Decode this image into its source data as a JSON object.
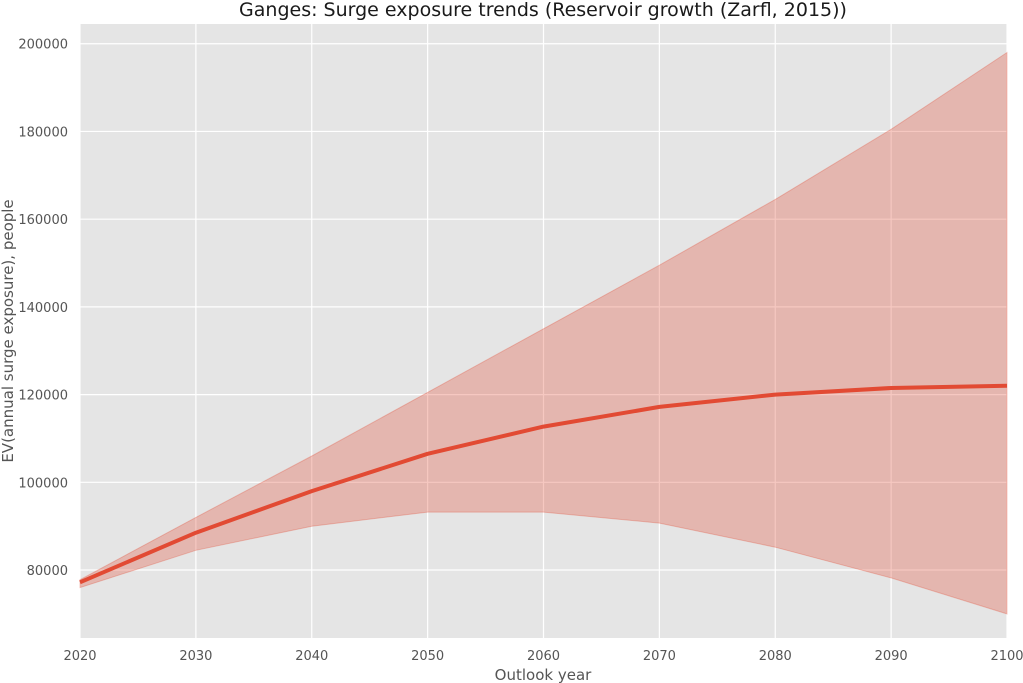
{
  "chart_data": {
    "type": "line",
    "title": "Ganges: Surge exposure trends (Reservoir growth (Zarfl, 2015))",
    "xlabel": "Outlook year",
    "ylabel": "EV(annual surge exposure), people",
    "x": [
      2020,
      2030,
      2040,
      2050,
      2060,
      2070,
      2080,
      2090,
      2100
    ],
    "xlim": [
      2020,
      2100
    ],
    "ylim": [
      64500,
      204500
    ],
    "xticks": [
      "2020",
      "2030",
      "2040",
      "2050",
      "2060",
      "2070",
      "2080",
      "2090",
      "2100"
    ],
    "yticks": [
      "80000",
      "100000",
      "120000",
      "140000",
      "160000",
      "180000",
      "200000"
    ],
    "grid": true,
    "series": [
      {
        "values": [
          77200,
          88500,
          98000,
          106500,
          112700,
          117200,
          120000,
          121500,
          122000
        ],
        "lower": [
          76000,
          84500,
          90000,
          93200,
          93200,
          90700,
          85200,
          78200,
          70000
        ],
        "upper": [
          77800,
          92000,
          106000,
          120500,
          135000,
          149500,
          164500,
          180500,
          198000
        ]
      }
    ],
    "colors": {
      "line": "#e24a33",
      "band": "#e24a33",
      "plot_background": "#e5e5e5",
      "grid": "#ffffff"
    }
  }
}
